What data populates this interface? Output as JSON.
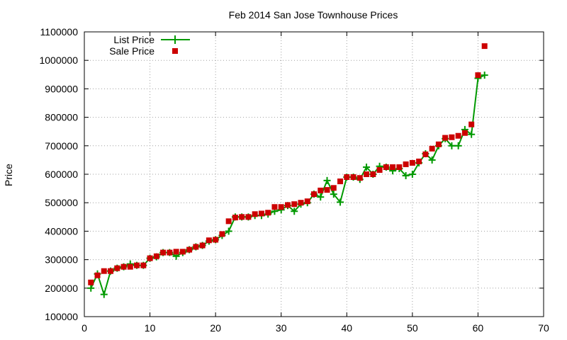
{
  "chart_data": {
    "type": "line",
    "title": "Feb 2014 San Jose Townhouse Prices",
    "xlabel": "",
    "ylabel": "Price",
    "xlim": [
      0,
      70
    ],
    "ylim": [
      100000,
      1100000
    ],
    "x_ticks": [
      "0",
      "10",
      "20",
      "30",
      "40",
      "50",
      "60",
      "70"
    ],
    "y_ticks": [
      "100000",
      "200000",
      "300000",
      "400000",
      "500000",
      "600000",
      "700000",
      "800000",
      "900000",
      "1000000",
      "1100000"
    ],
    "grid": true,
    "legend_position": "top-left",
    "series": [
      {
        "name": "List Price",
        "style": "line with plus markers",
        "color": "#009900",
        "x": [
          1,
          2,
          3,
          4,
          5,
          6,
          7,
          8,
          9,
          10,
          11,
          12,
          13,
          14,
          15,
          16,
          17,
          18,
          19,
          20,
          21,
          22,
          23,
          24,
          25,
          26,
          27,
          28,
          29,
          30,
          31,
          32,
          33,
          34,
          35,
          36,
          37,
          38,
          39,
          40,
          41,
          42,
          43,
          44,
          45,
          46,
          47,
          48,
          49,
          50,
          51,
          52,
          53,
          54,
          55,
          56,
          57,
          58,
          59,
          60,
          61
        ],
        "values": [
          200000,
          250000,
          178000,
          260000,
          270000,
          275000,
          285000,
          280000,
          280000,
          305000,
          310000,
          325000,
          325000,
          312000,
          325000,
          335000,
          345000,
          350000,
          365000,
          370000,
          385000,
          400000,
          450000,
          450000,
          450000,
          455000,
          455000,
          460000,
          470000,
          475000,
          490000,
          470000,
          495000,
          500000,
          530000,
          520000,
          578000,
          530000,
          502000,
          590000,
          590000,
          582000,
          625000,
          600000,
          628000,
          625000,
          612000,
          620000,
          595000,
          600000,
          640000,
          672000,
          650000,
          700000,
          725000,
          700000,
          700000,
          757000,
          740000,
          937000,
          948000
        ]
      },
      {
        "name": "Sale Price",
        "style": "square markers",
        "color": "#cc0000",
        "x": [
          1,
          2,
          3,
          4,
          5,
          6,
          7,
          8,
          9,
          10,
          11,
          12,
          13,
          14,
          15,
          16,
          17,
          18,
          19,
          20,
          21,
          22,
          23,
          24,
          25,
          26,
          27,
          28,
          29,
          30,
          31,
          32,
          33,
          34,
          35,
          36,
          37,
          38,
          39,
          40,
          41,
          42,
          43,
          44,
          45,
          46,
          47,
          48,
          49,
          50,
          51,
          52,
          53,
          54,
          55,
          56,
          57,
          58,
          59,
          60,
          61
        ],
        "values": [
          220000,
          245000,
          260000,
          260000,
          270000,
          275000,
          275000,
          280000,
          280000,
          305000,
          312000,
          325000,
          325000,
          328000,
          328000,
          335000,
          345000,
          350000,
          368000,
          370000,
          390000,
          435000,
          448000,
          450000,
          450000,
          460000,
          462000,
          465000,
          485000,
          485000,
          492000,
          495000,
          500000,
          505000,
          530000,
          543000,
          545000,
          552000,
          575000,
          590000,
          590000,
          587000,
          600000,
          600000,
          615000,
          625000,
          625000,
          625000,
          635000,
          640000,
          645000,
          670000,
          690000,
          705000,
          728000,
          730000,
          735000,
          745000,
          775000,
          948000,
          1050000
        ]
      }
    ]
  }
}
